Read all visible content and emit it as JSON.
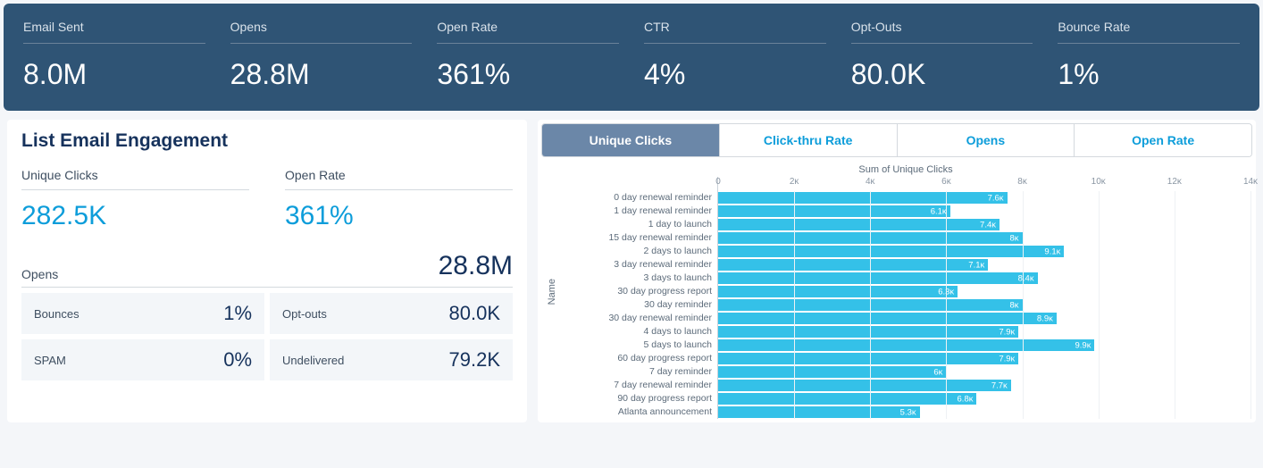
{
  "colors": {
    "top_bg": "#2f5475",
    "kpi_text": "#ffffff",
    "kpi_label": "#d9e2ea",
    "accent_blue": "#0d9dda",
    "bar_color": "#34c1e8",
    "tab_active_bg": "#6b87a8",
    "text_dark": "#16325c",
    "text_muted": "#5c6b7a",
    "sub_bg": "#f3f6f9"
  },
  "kpis": [
    {
      "label": "Email Sent",
      "value": "8.0M"
    },
    {
      "label": "Opens",
      "value": "28.8M"
    },
    {
      "label": "Open Rate",
      "value": "361%"
    },
    {
      "label": "CTR",
      "value": "4%"
    },
    {
      "label": "Opt-Outs",
      "value": "80.0K"
    },
    {
      "label": "Bounce Rate",
      "value": "1%"
    }
  ],
  "engagement": {
    "title": "List Email Engagement",
    "unique_clicks": {
      "label": "Unique Clicks",
      "value": "282.5K"
    },
    "open_rate": {
      "label": "Open Rate",
      "value": "361%"
    },
    "opens": {
      "label": "Opens",
      "value": "28.8M"
    },
    "sub": [
      {
        "label": "Bounces",
        "value": "1%"
      },
      {
        "label": "Opt-outs",
        "value": "80.0K"
      },
      {
        "label": "SPAM",
        "value": "0%"
      },
      {
        "label": "Undelivered",
        "value": "79.2K"
      }
    ]
  },
  "tabs": [
    {
      "label": "Unique Clicks",
      "active": true
    },
    {
      "label": "Click-thru Rate",
      "active": false
    },
    {
      "label": "Opens",
      "active": false
    },
    {
      "label": "Open Rate",
      "active": false
    }
  ],
  "chart": {
    "type": "bar-horizontal",
    "title": "Sum of Unique Clicks",
    "y_axis_label": "Name",
    "x_max": 14000,
    "x_ticks": [
      {
        "pos": 0,
        "label": "0"
      },
      {
        "pos": 2000,
        "label": "2ᴋ"
      },
      {
        "pos": 4000,
        "label": "4ᴋ"
      },
      {
        "pos": 6000,
        "label": "6ᴋ"
      },
      {
        "pos": 8000,
        "label": "8ᴋ"
      },
      {
        "pos": 10000,
        "label": "10ᴋ"
      },
      {
        "pos": 12000,
        "label": "12ᴋ"
      },
      {
        "pos": 14000,
        "label": "14ᴋ"
      }
    ],
    "rows": [
      {
        "name": "0 day renewal reminder",
        "value": 7600,
        "display": "7.6ᴋ"
      },
      {
        "name": "1 day renewal reminder",
        "value": 6100,
        "display": "6.1ᴋ"
      },
      {
        "name": "1 day to launch",
        "value": 7400,
        "display": "7.4ᴋ"
      },
      {
        "name": "15 day renewal reminder",
        "value": 8000,
        "display": "8ᴋ"
      },
      {
        "name": "2 days to launch",
        "value": 9100,
        "display": "9.1ᴋ"
      },
      {
        "name": "3 day renewal reminder",
        "value": 7100,
        "display": "7.1ᴋ"
      },
      {
        "name": "3 days to launch",
        "value": 8400,
        "display": "8.4ᴋ"
      },
      {
        "name": "30 day progress report",
        "value": 6300,
        "display": "6.3ᴋ"
      },
      {
        "name": "30 day reminder",
        "value": 8000,
        "display": "8ᴋ"
      },
      {
        "name": "30 day renewal reminder",
        "value": 8900,
        "display": "8.9ᴋ"
      },
      {
        "name": "4 days to launch",
        "value": 7900,
        "display": "7.9ᴋ"
      },
      {
        "name": "5 days to launch",
        "value": 9900,
        "display": "9.9ᴋ"
      },
      {
        "name": "60 day progress report",
        "value": 7900,
        "display": "7.9ᴋ"
      },
      {
        "name": "7 day reminder",
        "value": 6000,
        "display": "6ᴋ"
      },
      {
        "name": "7 day renewal reminder",
        "value": 7700,
        "display": "7.7ᴋ"
      },
      {
        "name": "90 day progress report",
        "value": 6800,
        "display": "6.8ᴋ"
      },
      {
        "name": "Atlanta announcement",
        "value": 5300,
        "display": "5.3ᴋ"
      }
    ]
  }
}
